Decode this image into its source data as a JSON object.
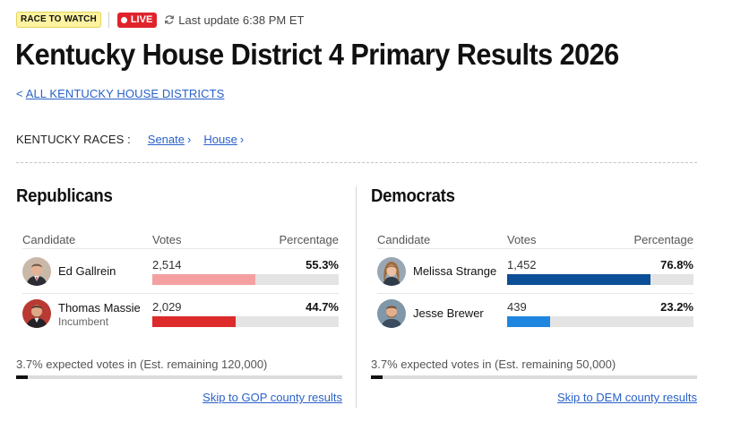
{
  "header": {
    "badge_race": "RACE TO WATCH",
    "badge_live": "LIVE",
    "last_update": "Last update 6:38 PM ET",
    "title": "Kentucky House District 4 Primary Results 2026",
    "back_link": "ALL KENTUCKY HOUSE DISTRICTS"
  },
  "races": {
    "label": "KENTUCKY RACES :",
    "links": [
      "Senate",
      "House"
    ]
  },
  "columns": {
    "candidate": "Candidate",
    "votes": "Votes",
    "percentage": "Percentage"
  },
  "colors": {
    "gop_winner": "#f4a0a0",
    "gop_other": "#dd2a2a",
    "dem_winner": "#0b4f96",
    "dem_other": "#1f86e0",
    "link": "#2961c9",
    "live": "#e0232b"
  },
  "gop": {
    "title": "Republicans",
    "candidates": [
      {
        "name": "Ed Gallrein",
        "note": "",
        "votes": "2,514",
        "percentage": "55.3%",
        "share": 0.553
      },
      {
        "name": "Thomas Massie",
        "note": "Incumbent",
        "votes": "2,029",
        "percentage": "44.7%",
        "share": 0.447
      }
    ],
    "expected": "3.7% expected votes in (Est. remaining 120,000)",
    "expected_share": 0.037,
    "skip_link": "Skip to GOP county results"
  },
  "dem": {
    "title": "Democrats",
    "candidates": [
      {
        "name": "Melissa Strange",
        "note": "",
        "votes": "1,452",
        "percentage": "76.8%",
        "share": 0.768
      },
      {
        "name": "Jesse Brewer",
        "note": "",
        "votes": "439",
        "percentage": "23.2%",
        "share": 0.232
      }
    ],
    "expected": "3.7% expected votes in (Est. remaining 50,000)",
    "expected_share": 0.037,
    "skip_link": "Skip to DEM county results"
  }
}
